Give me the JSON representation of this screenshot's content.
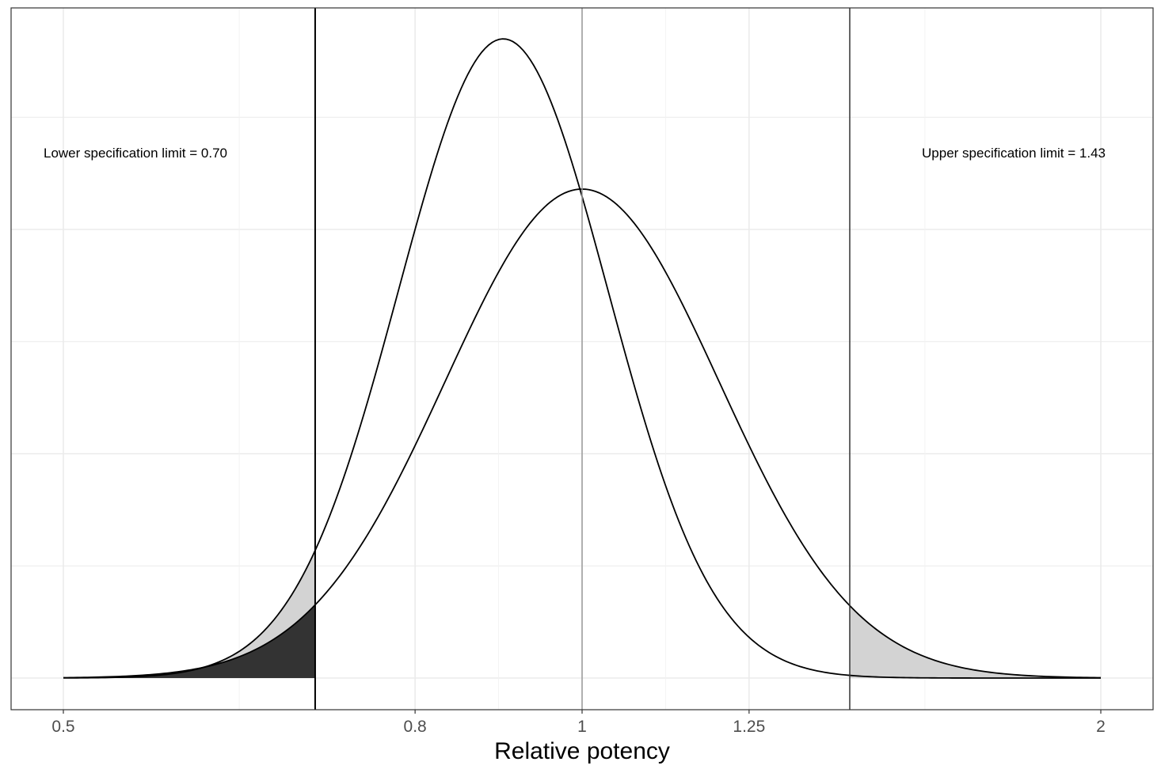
{
  "chart_data": {
    "type": "line",
    "title": "",
    "xlabel": "Relative potency",
    "ylabel": "",
    "x_scale": "log",
    "xlim": [
      0.5,
      2
    ],
    "x_ticks": [
      0.5,
      0.8,
      1,
      1.25,
      2
    ],
    "x_tick_labels": [
      "0.5",
      "0.8",
      "1",
      "1.25",
      "2"
    ],
    "y_tick_labels_shown": false,
    "grid": true,
    "series": [
      {
        "distribution": "lognormal",
        "median": 0.9,
        "sigma_log": 0.14,
        "fill_lower_tail": "#d3d3d3",
        "fill_upper_tail": "#d3d3d3"
      },
      {
        "distribution": "lognormal",
        "median": 1.0,
        "sigma_log": 0.183,
        "fill_lower_tail": "#333333",
        "fill_upper_tail": "#d3d3d3"
      }
    ],
    "reference_lines": [
      {
        "x": 0.7,
        "label": "Lower specification limit = 0.70",
        "color": "#000000"
      },
      {
        "x": 1.43,
        "label": "Upper specification limit = 1.43",
        "color": "#333333"
      },
      {
        "x": 1.0,
        "label": "",
        "color": "#999999"
      }
    ]
  }
}
